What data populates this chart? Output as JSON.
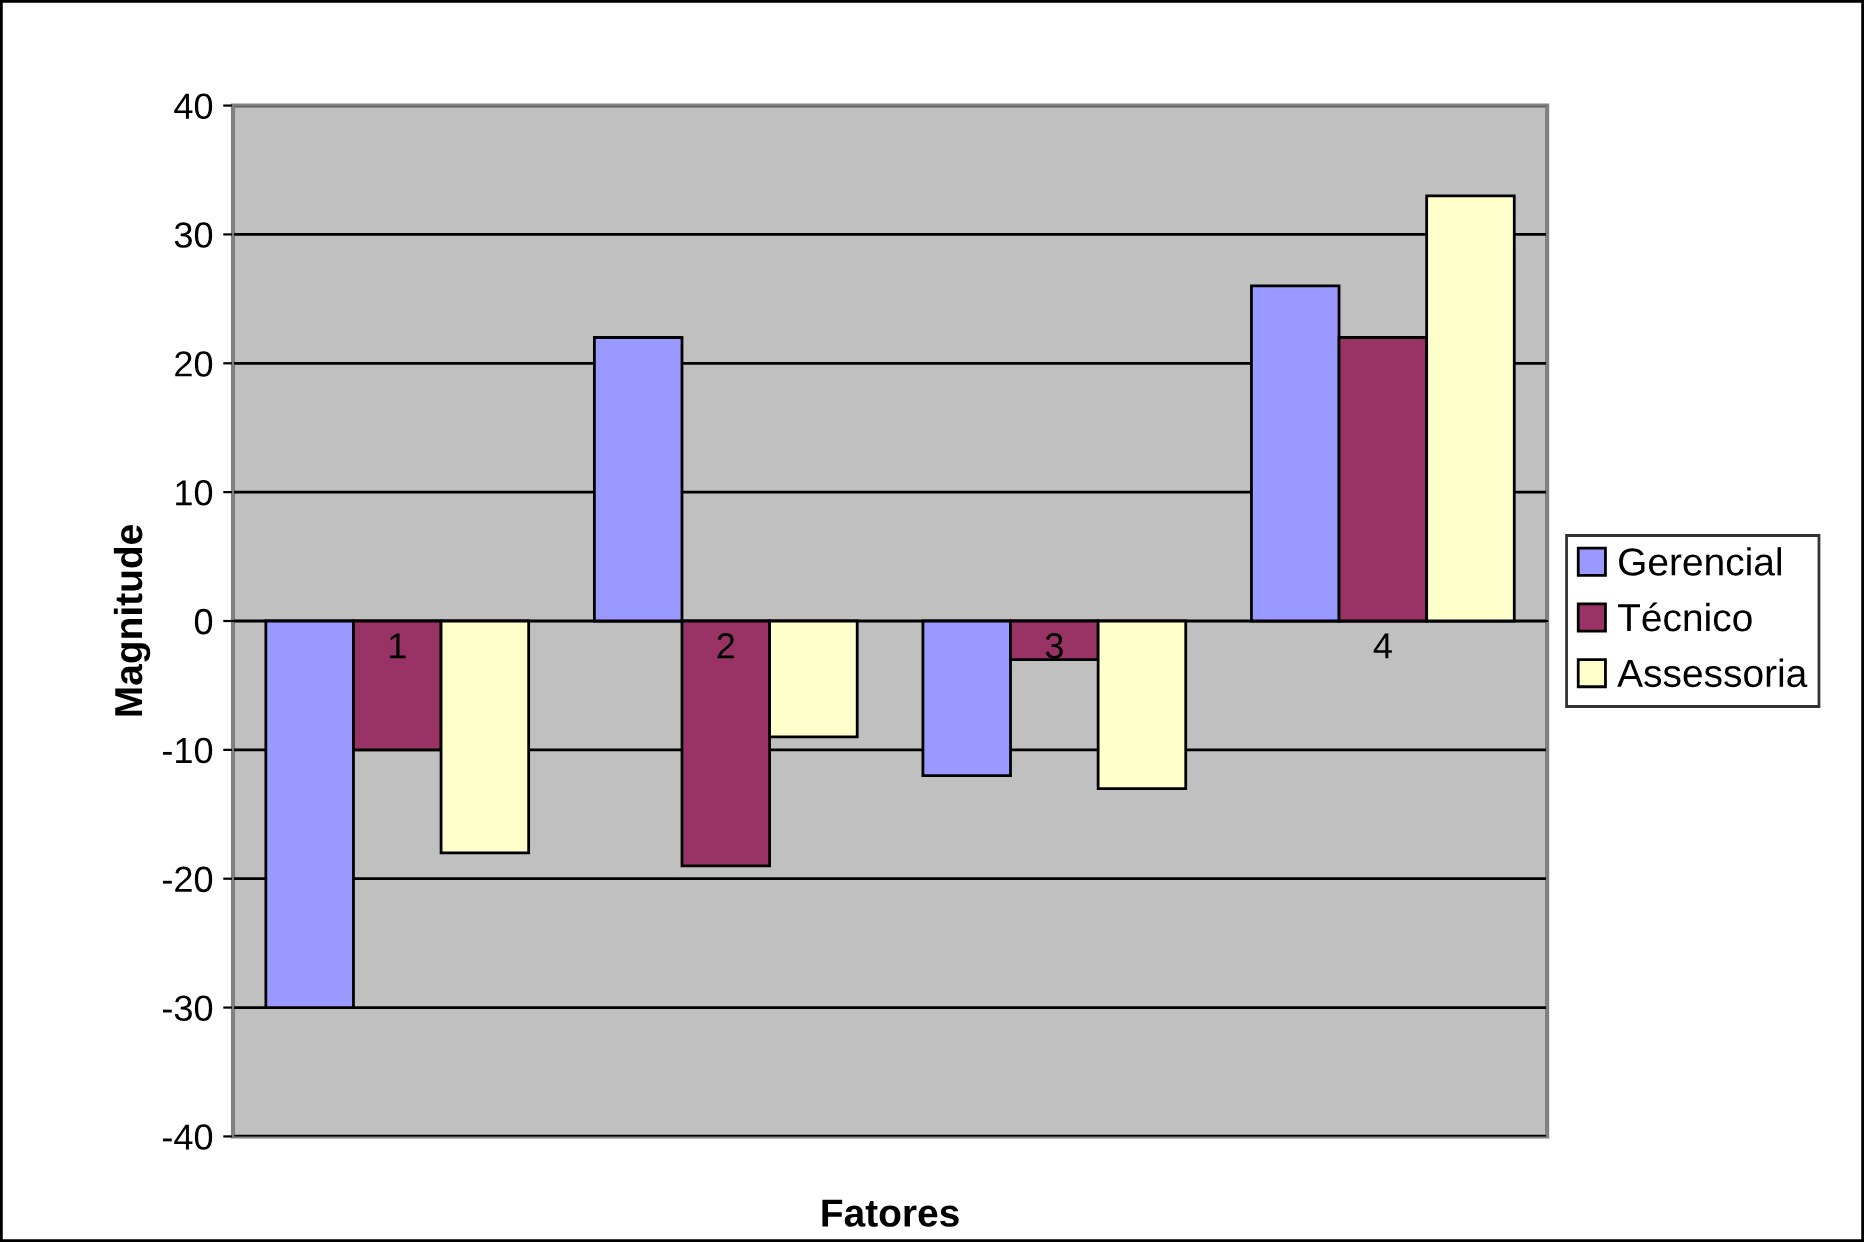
{
  "chart_data": {
    "type": "bar",
    "xlabel": "Fatores",
    "ylabel": "Magnitude",
    "categories": [
      "1",
      "2",
      "3",
      "4"
    ],
    "series": [
      {
        "name": "Gerencial",
        "color": "#9999ff",
        "values": [
          -30,
          22,
          -12,
          26
        ]
      },
      {
        "name": "Técnico",
        "color": "#993366",
        "values": [
          -10,
          -19,
          -3,
          22
        ]
      },
      {
        "name": "Assessoria",
        "color": "#ffffcc",
        "values": [
          -18,
          -9,
          -13,
          33
        ]
      }
    ],
    "ylim": [
      -40,
      40
    ],
    "yticks": [
      -40,
      -30,
      -20,
      -10,
      0,
      10,
      20,
      30,
      40
    ],
    "grid": "y",
    "legend": "right"
  }
}
